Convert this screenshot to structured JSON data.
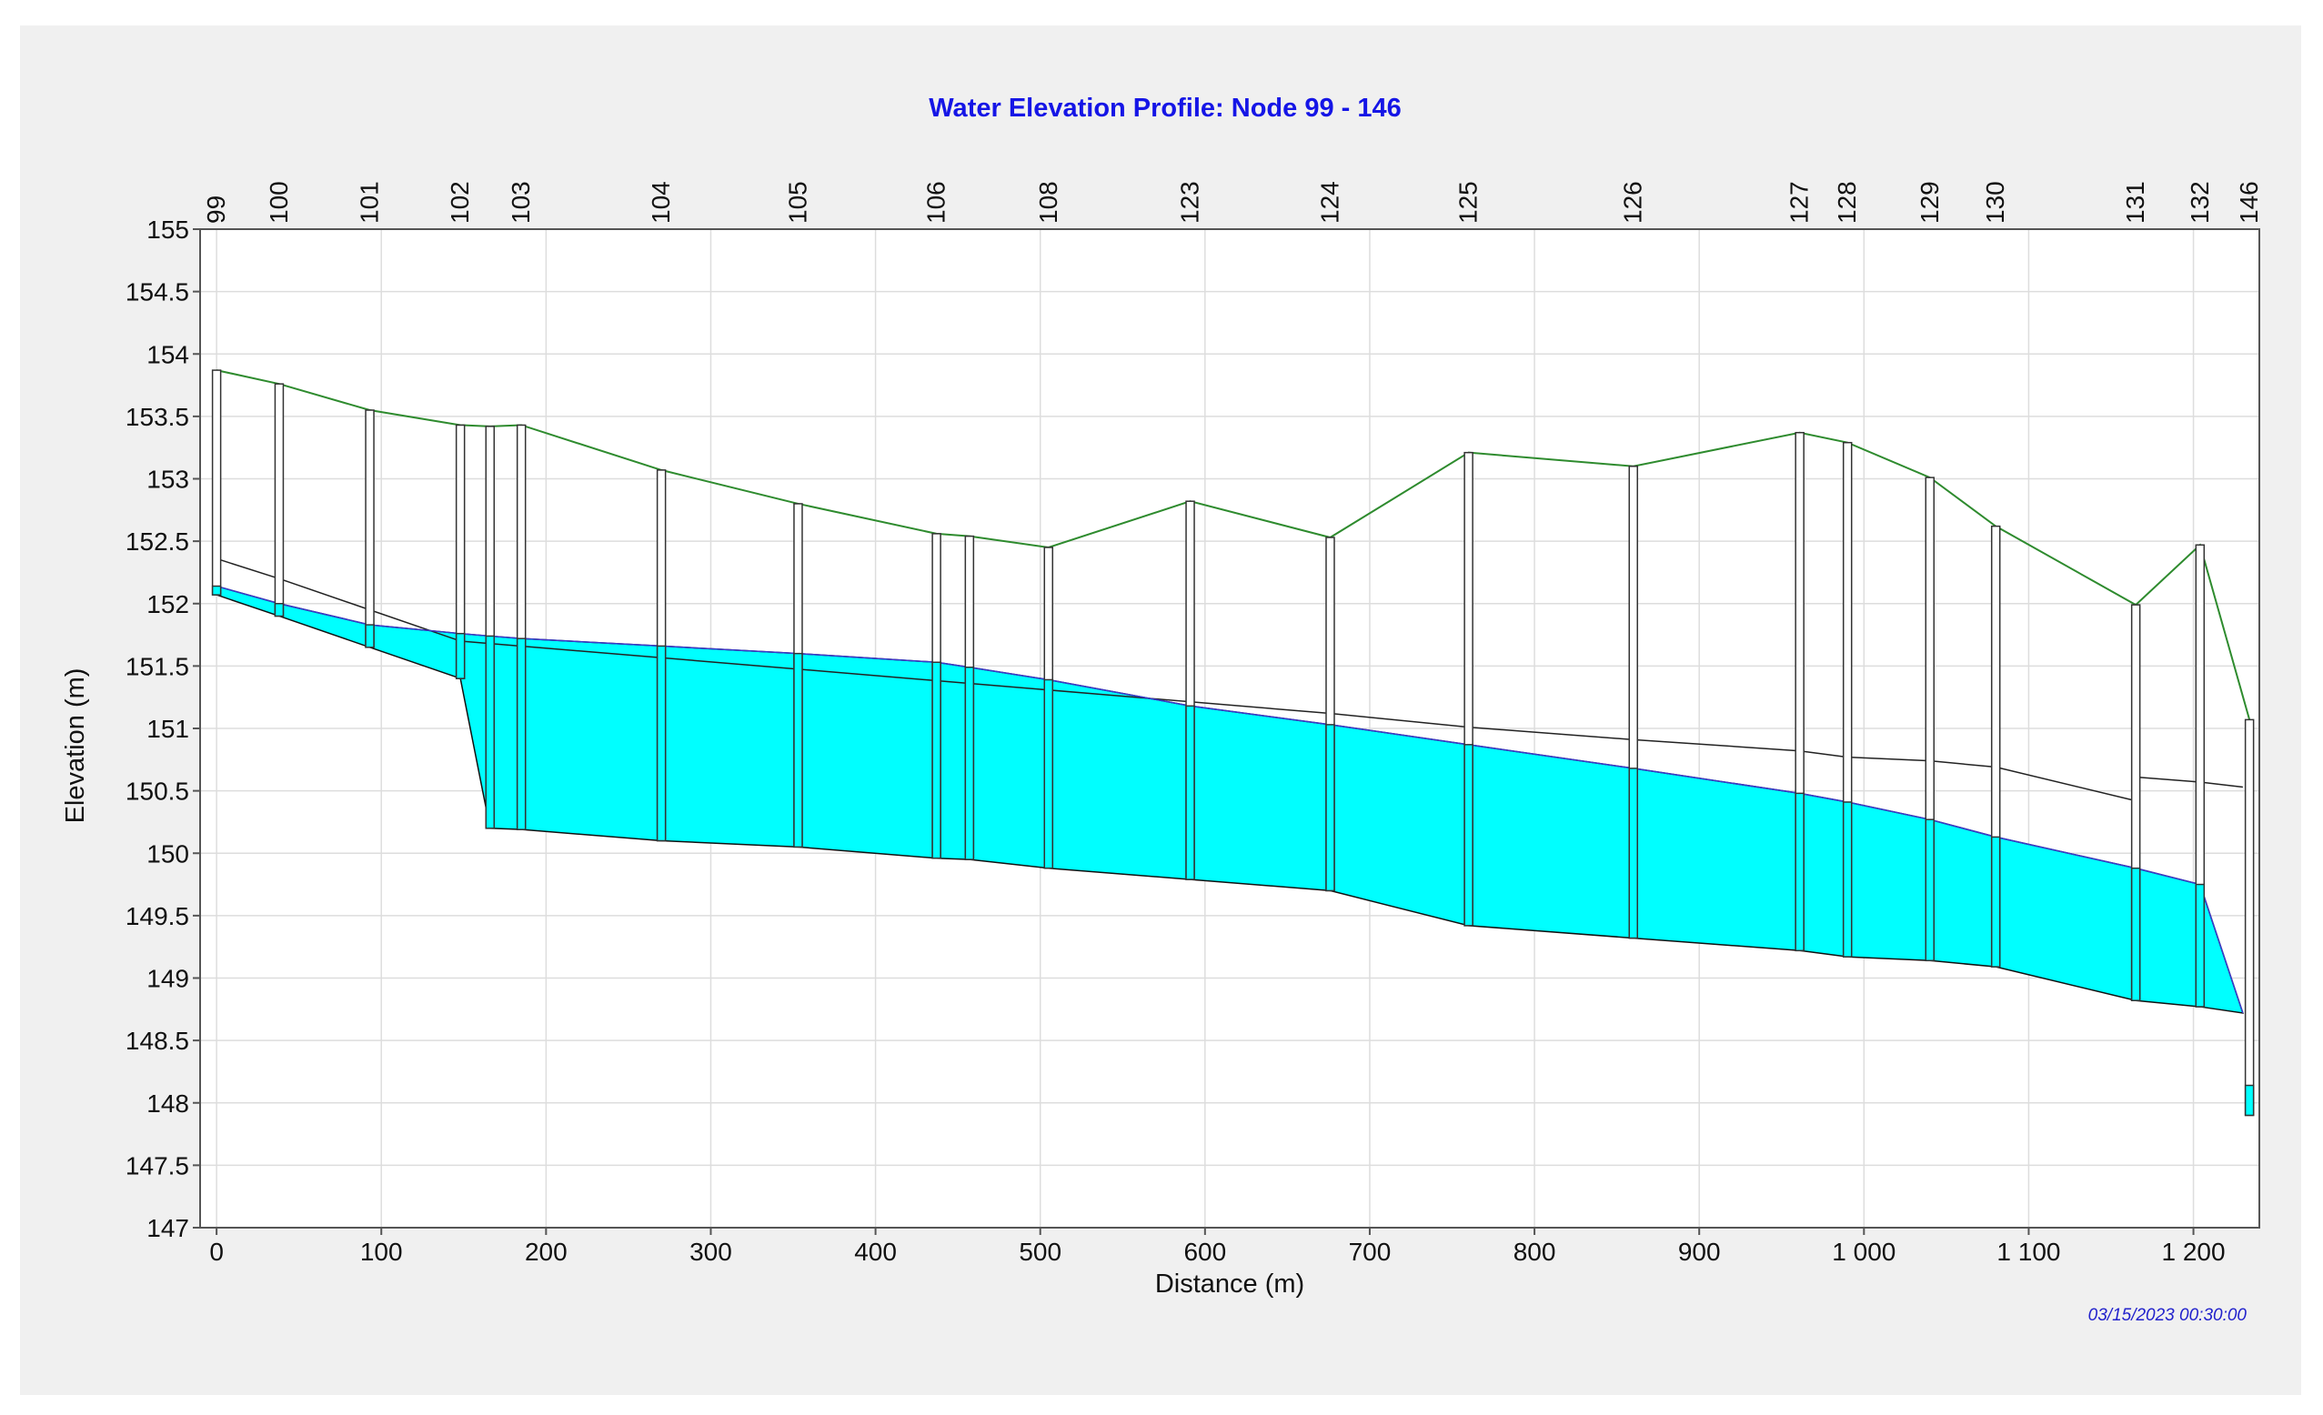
{
  "chart_data": {
    "type": "line",
    "title": "Water Elevation Profile: Node 99 - 146",
    "xlabel": "Distance (m)",
    "ylabel": "Elevation (m)",
    "xlim": [
      -10,
      1240
    ],
    "ylim": [
      147,
      155
    ],
    "grid": true,
    "timestamp": "03/15/2023 00:30:00",
    "x_ticks": [
      0,
      100,
      200,
      300,
      400,
      500,
      600,
      700,
      800,
      900,
      1000,
      1100,
      1200
    ],
    "x_tick_labels": [
      "0",
      "100",
      "200",
      "300",
      "400",
      "500",
      "600",
      "700",
      "800",
      "900",
      "1 000",
      "1 100",
      "1 200"
    ],
    "y_ticks": [
      147,
      147.5,
      148,
      148.5,
      149,
      149.5,
      150,
      150.5,
      151,
      151.5,
      152,
      152.5,
      153,
      153.5,
      154,
      154.5,
      155
    ],
    "y_tick_labels": [
      "147",
      "147.5",
      "148",
      "148.5",
      "149",
      "149.5",
      "150",
      "150.5",
      "151",
      "151.5",
      "152",
      "152.5",
      "153",
      "153.5",
      "154",
      "154.5",
      "155"
    ],
    "nodes": [
      {
        "label": "99",
        "x": 0,
        "ground": 153.87,
        "invert": 152.07,
        "water": 152.14
      },
      {
        "label": "100",
        "x": 38,
        "ground": 153.76,
        "invert": 151.9,
        "water": 152.0
      },
      {
        "label": "101",
        "x": 93,
        "ground": 153.55,
        "invert": 151.65,
        "water": 151.83
      },
      {
        "label": "102",
        "x": 148,
        "ground": 153.43,
        "invert": 151.4,
        "water": 151.76
      },
      {
        "label": "",
        "x": 166,
        "ground": 153.42,
        "invert": 150.2,
        "water": 151.74
      },
      {
        "label": "103",
        "x": 185,
        "ground": 153.43,
        "invert": 150.19,
        "water": 151.72
      },
      {
        "label": "104",
        "x": 270,
        "ground": 153.07,
        "invert": 150.1,
        "water": 151.66
      },
      {
        "label": "105",
        "x": 353,
        "ground": 152.8,
        "invert": 150.05,
        "water": 151.6
      },
      {
        "label": "106",
        "x": 437,
        "ground": 152.56,
        "invert": 149.96,
        "water": 151.53
      },
      {
        "label": "",
        "x": 457,
        "ground": 152.54,
        "invert": 149.95,
        "water": 151.49
      },
      {
        "label": "108",
        "x": 505,
        "ground": 152.45,
        "invert": 149.88,
        "water": 151.39
      },
      {
        "label": "123",
        "x": 591,
        "ground": 152.82,
        "invert": 149.79,
        "water": 151.18
      },
      {
        "label": "124",
        "x": 676,
        "ground": 152.53,
        "invert": 149.7,
        "water": 151.03
      },
      {
        "label": "125",
        "x": 760,
        "ground": 153.21,
        "invert": 149.42,
        "water": 150.87
      },
      {
        "label": "126",
        "x": 860,
        "ground": 153.1,
        "invert": 149.32,
        "water": 150.68
      },
      {
        "label": "127",
        "x": 961,
        "ground": 153.37,
        "invert": 149.22,
        "water": 150.48
      },
      {
        "label": "128",
        "x": 990,
        "ground": 153.29,
        "invert": 149.17,
        "water": 150.41
      },
      {
        "label": "129",
        "x": 1040,
        "ground": 153.01,
        "invert": 149.14,
        "water": 150.27
      },
      {
        "label": "130",
        "x": 1080,
        "ground": 152.62,
        "invert": 149.09,
        "water": 150.13
      },
      {
        "label": "131",
        "x": 1165,
        "ground": 151.99,
        "invert": 148.82,
        "water": 149.88
      },
      {
        "label": "132",
        "x": 1204,
        "ground": 152.47,
        "invert": 148.77,
        "water": 149.75
      },
      {
        "label": "146",
        "x": 1234,
        "ground": 151.07,
        "invert": 147.9,
        "water": 148.14
      }
    ],
    "series": [
      {
        "key": "ground",
        "color": "#2e8b2e"
      },
      {
        "key": "hgl",
        "color": "#3a3acc"
      },
      {
        "key": "crown",
        "color": "#222222"
      },
      {
        "key": "flow",
        "color": "#00ffff"
      }
    ],
    "crown_profile": [
      {
        "x": 0,
        "y": 152.36
      },
      {
        "x": 38,
        "y": 152.2
      },
      {
        "x": 93,
        "y": 151.95
      },
      {
        "x": 148,
        "y": 151.7
      },
      {
        "x": 676,
        "y": 151.12
      },
      {
        "x": 760,
        "y": 151.01
      },
      {
        "x": 860,
        "y": 150.91
      },
      {
        "x": 961,
        "y": 150.82
      },
      {
        "x": 990,
        "y": 150.77
      },
      {
        "x": 1040,
        "y": 150.74
      },
      {
        "x": 1080,
        "y": 150.69
      },
      {
        "x": 1165,
        "y": 150.42
      }
    ],
    "crown_tail": [
      {
        "x": 1165,
        "y": 150.61
      },
      {
        "x": 1204,
        "y": 150.57
      },
      {
        "x": 1230,
        "y": 150.53
      }
    ],
    "outlet_invert": 148.72
  }
}
